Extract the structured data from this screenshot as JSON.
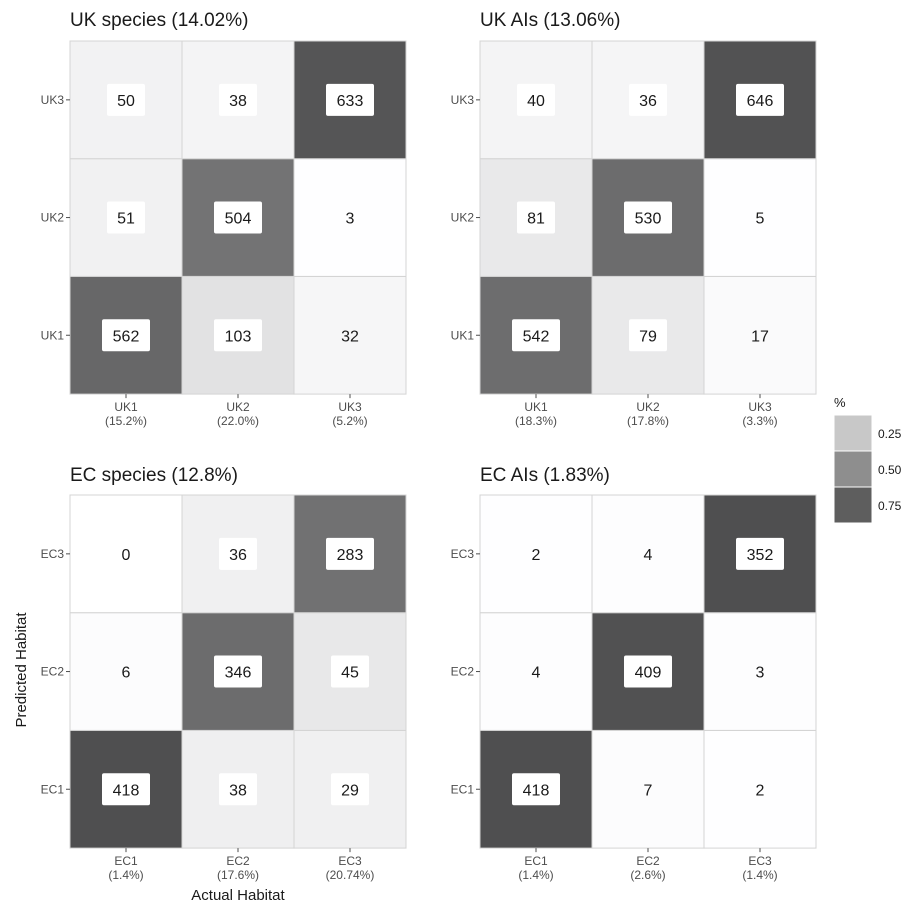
{
  "chart_data": {
    "type": "heatmap",
    "xlabel": "Actual Habitat",
    "ylabel": "Predicted Habitat",
    "legend": {
      "title": "%",
      "position": "right",
      "breaks": [
        "0.25",
        "0.50",
        "0.75"
      ],
      "colors": [
        "#c8c8c8",
        "#8e8e8e",
        "#5e5e5e"
      ]
    },
    "panels": [
      {
        "title": "UK species (14.02%)",
        "x_categories": [
          "UK1",
          "UK2",
          "UK3"
        ],
        "x_sublabels": [
          "(15.2%)",
          "(22.0%)",
          "(5.2%)"
        ],
        "y_categories": [
          "UK1",
          "UK2",
          "UK3"
        ],
        "values": [
          [
            562,
            103,
            32
          ],
          [
            51,
            504,
            3
          ],
          [
            50,
            38,
            633
          ]
        ]
      },
      {
        "title": "UK AIs (13.06%)",
        "x_categories": [
          "UK1",
          "UK2",
          "UK3"
        ],
        "x_sublabels": [
          "(18.3%)",
          "(17.8%)",
          "(3.3%)"
        ],
        "y_categories": [
          "UK1",
          "UK2",
          "UK3"
        ],
        "values": [
          [
            542,
            79,
            17
          ],
          [
            81,
            530,
            5
          ],
          [
            40,
            36,
            646
          ]
        ]
      },
      {
        "title": "EC species (12.8%)",
        "x_categories": [
          "EC1",
          "EC2",
          "EC3"
        ],
        "x_sublabels": [
          "(1.4%)",
          "(17.6%)",
          "(20.74%)"
        ],
        "y_categories": [
          "EC1",
          "EC2",
          "EC3"
        ],
        "values": [
          [
            418,
            38,
            29
          ],
          [
            6,
            346,
            45
          ],
          [
            0,
            36,
            283
          ]
        ]
      },
      {
        "title": "EC AIs (1.83%)",
        "x_categories": [
          "EC1",
          "EC2",
          "EC3"
        ],
        "x_sublabels": [
          "(1.4%)",
          "(2.6%)",
          "(1.4%)"
        ],
        "y_categories": [
          "EC1",
          "EC2",
          "EC3"
        ],
        "values": [
          [
            418,
            7,
            2
          ],
          [
            4,
            409,
            3
          ],
          [
            2,
            4,
            352
          ]
        ]
      }
    ]
  }
}
